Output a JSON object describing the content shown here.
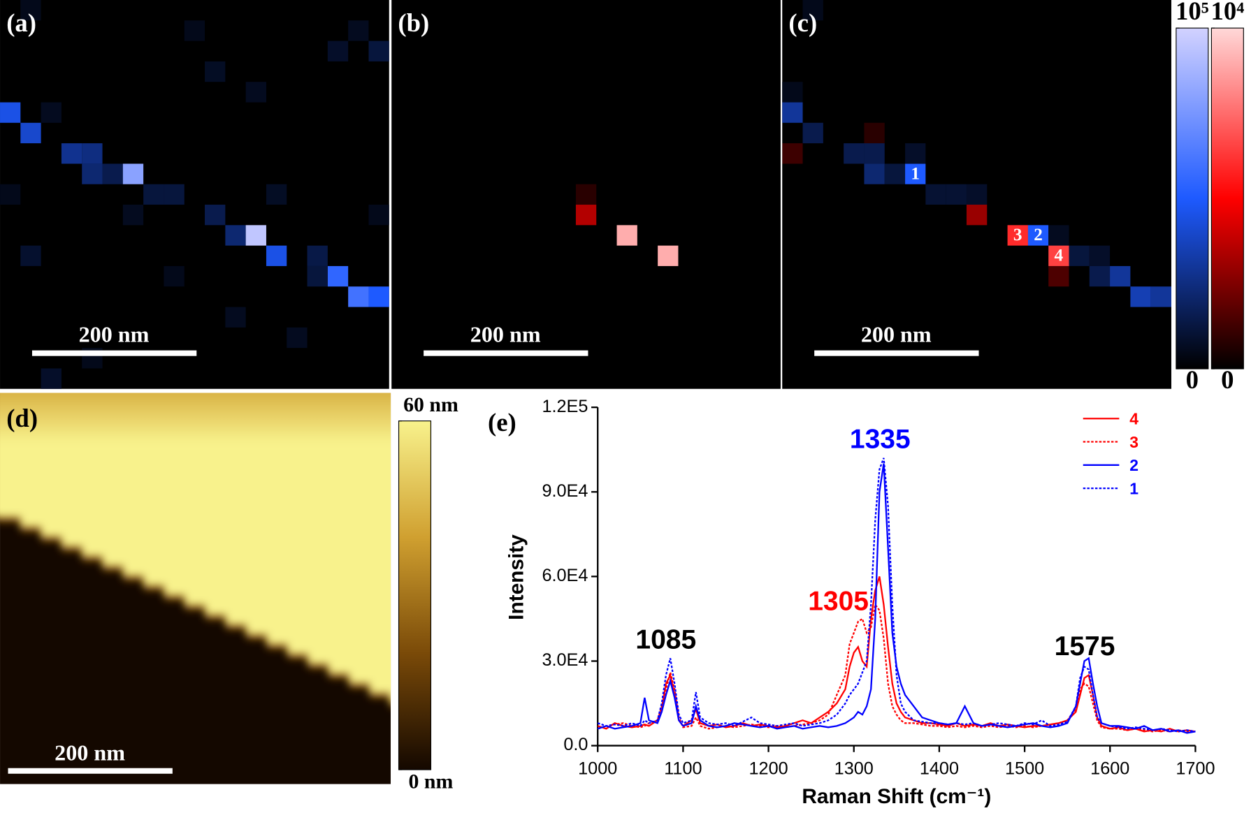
{
  "chart_data": [
    {
      "type": "heatmap",
      "panel_label": "(a)",
      "scale_bar": "200 nm",
      "layers": [
        {
          "clim": [
            0,
            100000
          ],
          "colors": [
            "#000000",
            "#1e5aff",
            "#d2d2ff"
          ],
          "x": [
            0,
            1,
            3,
            4,
            4,
            5,
            6,
            7,
            8,
            10,
            11,
            12,
            13,
            15,
            16,
            15,
            17,
            18,
            1,
            2,
            0,
            16,
            18,
            17,
            10,
            12,
            1,
            8,
            11,
            2,
            4,
            14,
            18,
            13,
            9,
            6
          ],
          "y": [
            5,
            6,
            7,
            7,
            8,
            8,
            8,
            9,
            9,
            10,
            11,
            11,
            12,
            12,
            13,
            13,
            14,
            14,
            0,
            5,
            9,
            2,
            2,
            1,
            3,
            4,
            12,
            13,
            15,
            18,
            17,
            16,
            10,
            9,
            1,
            10
          ],
          "values": [
            45000,
            40000,
            28000,
            25000,
            22000,
            15000,
            80000,
            12000,
            12000,
            15000,
            22000,
            95000,
            45000,
            14000,
            55000,
            12000,
            60000,
            50000,
            5000,
            6000,
            5000,
            8000,
            12000,
            6000,
            7000,
            6000,
            9000,
            5000,
            6000,
            8000,
            5000,
            6000,
            5000,
            7000,
            5000,
            6000
          ]
        }
      ]
    },
    {
      "type": "heatmap",
      "panel_label": "(b)",
      "scale_bar": "200 nm",
      "layers": [
        {
          "clim": [
            0,
            10000
          ],
          "colors": [
            "#000000",
            "#ff0000",
            "#ffd8d8"
          ],
          "x": [
            9,
            11,
            13,
            9
          ],
          "y": [
            10,
            11,
            12,
            9
          ],
          "values": [
            3500,
            9000,
            9000,
            800
          ]
        }
      ]
    },
    {
      "type": "heatmap",
      "panel_label": "(c)",
      "scale_bar": "200 nm",
      "layers": [
        {
          "clim": [
            0,
            100000
          ],
          "colors": [
            "#000000",
            "#1e5aff",
            "#d2d2ff"
          ],
          "x": [
            0,
            1,
            3,
            4,
            4,
            5,
            6,
            6,
            7,
            8,
            9,
            12,
            13,
            14,
            15,
            15,
            16,
            17,
            18,
            1,
            0
          ],
          "y": [
            5,
            6,
            7,
            7,
            8,
            8,
            8,
            7,
            9,
            9,
            9,
            11,
            11,
            12,
            12,
            13,
            13,
            14,
            14,
            0,
            4
          ],
          "values": [
            30000,
            15000,
            15000,
            15000,
            22000,
            12000,
            50000,
            8000,
            10000,
            10000,
            8000,
            50000,
            6000,
            12000,
            8000,
            15000,
            30000,
            35000,
            30000,
            5000,
            5000
          ]
        },
        {
          "clim": [
            0,
            10000
          ],
          "colors": [
            "#000000",
            "#ff0000",
            "#ffd8d8"
          ],
          "x": [
            9,
            11,
            13,
            13,
            0,
            4
          ],
          "y": [
            10,
            11,
            12,
            13,
            7,
            6
          ],
          "values": [
            3000,
            6000,
            6500,
            1500,
            1200,
            800
          ]
        }
      ],
      "annotations": [
        {
          "text": "1",
          "x": 6,
          "y": 8
        },
        {
          "text": "2",
          "x": 12,
          "y": 11
        },
        {
          "text": "3",
          "x": 11,
          "y": 11
        },
        {
          "text": "4",
          "x": 13,
          "y": 12
        }
      ],
      "colorbars": [
        {
          "clim": [
            0,
            100000
          ],
          "colors": [
            "#000000",
            "#1e5aff",
            "#d2d2ff"
          ],
          "ticks": [
            {
              "value": 100000,
              "label": "10⁵"
            },
            0
          ]
        },
        {
          "clim": [
            0,
            10000
          ],
          "colors": [
            "#000000",
            "#ff0000",
            "#ffd8d8"
          ],
          "ticks": [
            {
              "value": 10000,
              "label": "10⁴"
            },
            0
          ]
        }
      ]
    },
    {
      "type": "image",
      "panel_label": "(d)",
      "scale_bar": "200 nm",
      "colorbar": {
        "clim": [
          0,
          60
        ],
        "colors": [
          "#140800",
          "#7a4a08",
          "#d0a030",
          "#f8f28c"
        ],
        "ticks": [
          {
            "value": 60,
            "label": "60 nm"
          },
          {
            "value": 0,
            "label": "0 nm"
          }
        ]
      }
    },
    {
      "type": "line",
      "panel_label": "(e)",
      "x_label": "Raman Shift (cm⁻¹)",
      "y_label": "Intensity",
      "xlim": [
        1000,
        1700
      ],
      "xticks": [
        1000,
        1100,
        1200,
        1300,
        1400,
        1500,
        1600,
        1700
      ],
      "ylim": [
        0,
        120000
      ],
      "yticks": [
        {
          "value": 0,
          "label": "0.0"
        },
        {
          "value": 30000,
          "label": "3.0E4"
        },
        {
          "value": 60000,
          "label": "6.0E4"
        },
        {
          "value": 90000,
          "label": "9.0E4"
        },
        {
          "value": 120000,
          "label": "1.2E5"
        }
      ],
      "legend": "upper right",
      "x": [
        1000,
        1010,
        1020,
        1030,
        1040,
        1050,
        1055,
        1060,
        1070,
        1075,
        1080,
        1085,
        1090,
        1095,
        1100,
        1110,
        1115,
        1120,
        1130,
        1140,
        1150,
        1160,
        1170,
        1180,
        1190,
        1200,
        1210,
        1220,
        1230,
        1240,
        1250,
        1260,
        1270,
        1280,
        1290,
        1295,
        1300,
        1305,
        1310,
        1315,
        1320,
        1325,
        1330,
        1335,
        1340,
        1345,
        1350,
        1355,
        1360,
        1370,
        1380,
        1390,
        1400,
        1410,
        1420,
        1430,
        1440,
        1450,
        1460,
        1470,
        1480,
        1490,
        1500,
        1510,
        1520,
        1530,
        1540,
        1550,
        1560,
        1565,
        1570,
        1575,
        1580,
        1585,
        1590,
        1600,
        1610,
        1620,
        1630,
        1640,
        1650,
        1660,
        1670,
        1680,
        1690,
        1700
      ],
      "series": [
        {
          "name": "4",
          "color": "#ff0000",
          "style": "solid",
          "values": [
            7000,
            6000,
            8000,
            7000,
            6500,
            7000,
            7500,
            7000,
            9000,
            13000,
            22000,
            25000,
            18000,
            9000,
            7000,
            9000,
            13000,
            8000,
            7000,
            7500,
            6500,
            7000,
            8000,
            7000,
            7500,
            7000,
            6500,
            7000,
            8000,
            9000,
            8000,
            10000,
            12000,
            15000,
            20000,
            28000,
            33000,
            35000,
            30000,
            28000,
            45000,
            55000,
            60000,
            50000,
            35000,
            22000,
            15000,
            12000,
            10000,
            9000,
            8000,
            8000,
            7500,
            7000,
            8000,
            7000,
            7500,
            7000,
            8000,
            7000,
            7500,
            7000,
            6500,
            7000,
            7000,
            7500,
            8000,
            9000,
            12000,
            18000,
            24000,
            25000,
            18000,
            10000,
            7000,
            6000,
            6500,
            5500,
            6000,
            5000,
            5500,
            5000,
            6000,
            5000,
            5500,
            5000
          ]
        },
        {
          "name": "3",
          "color": "#ff0000",
          "style": "dotted",
          "values": [
            6000,
            7000,
            7500,
            8000,
            7000,
            6500,
            7000,
            8000,
            9000,
            14000,
            20000,
            26000,
            20000,
            10000,
            6500,
            7000,
            10000,
            7000,
            6000,
            6500,
            7000,
            6500,
            7000,
            7500,
            7000,
            6500,
            7000,
            6500,
            7000,
            7500,
            8000,
            9000,
            11000,
            18000,
            25000,
            36000,
            40000,
            44000,
            45000,
            40000,
            42000,
            50000,
            48000,
            38000,
            22000,
            14000,
            11000,
            9000,
            8000,
            8000,
            7500,
            7000,
            7000,
            6500,
            7000,
            6500,
            7000,
            6500,
            7000,
            6500,
            7000,
            6500,
            7000,
            6500,
            7000,
            7500,
            8000,
            9000,
            13000,
            20000,
            22000,
            21000,
            15000,
            9000,
            6500,
            6000,
            6000,
            5500,
            6000,
            5500,
            5000,
            5500,
            5000,
            5500,
            5000,
            5000
          ]
        },
        {
          "name": "2",
          "color": "#0000ff",
          "style": "solid",
          "values": [
            6000,
            7000,
            6000,
            6500,
            7000,
            8000,
            17000,
            9000,
            8000,
            12000,
            18000,
            23000,
            17000,
            9000,
            7000,
            8000,
            14000,
            9000,
            7000,
            6500,
            7000,
            8000,
            7500,
            7000,
            6500,
            7000,
            6000,
            6500,
            7000,
            6000,
            6500,
            7000,
            6500,
            7000,
            8000,
            9000,
            10000,
            12000,
            11000,
            14000,
            20000,
            45000,
            90000,
            100000,
            70000,
            40000,
            28000,
            22000,
            18000,
            14000,
            10000,
            9000,
            8000,
            7500,
            8000,
            14000,
            8000,
            7000,
            7500,
            7000,
            6500,
            7000,
            7500,
            8000,
            7000,
            6500,
            7000,
            8000,
            14000,
            22000,
            30000,
            31000,
            22000,
            14000,
            8000,
            7000,
            7000,
            6500,
            6000,
            7000,
            5500,
            6000,
            5000,
            5500,
            4500,
            5000
          ]
        },
        {
          "name": "1",
          "color": "#0000ff",
          "style": "dotted",
          "values": [
            8000,
            7000,
            7500,
            7000,
            8000,
            7000,
            9000,
            8000,
            9000,
            15000,
            25000,
            31000,
            22000,
            11000,
            8000,
            9000,
            19000,
            10000,
            8000,
            7500,
            8000,
            7000,
            8500,
            10000,
            8000,
            7500,
            7000,
            7500,
            8000,
            7000,
            7500,
            8000,
            9000,
            11000,
            15000,
            18000,
            20000,
            22000,
            26000,
            30000,
            50000,
            80000,
            98000,
            102000,
            85000,
            50000,
            25000,
            15000,
            12000,
            9000,
            8500,
            8000,
            8000,
            7500,
            8000,
            7500,
            8000,
            7000,
            7500,
            8000,
            7500,
            7000,
            8000,
            7500,
            9000,
            7000,
            7500,
            8500,
            14000,
            24000,
            28000,
            27000,
            18000,
            10000,
            8000,
            7000,
            6500,
            6000,
            6500,
            6000,
            5500,
            6000,
            5500,
            5000,
            5500,
            5000
          ]
        }
      ],
      "annotations": [
        {
          "text": "1085",
          "color": "#000000"
        },
        {
          "text": "1305",
          "color": "#ff0000"
        },
        {
          "text": "1335",
          "color": "#0000ff"
        },
        {
          "text": "1575",
          "color": "#000000"
        }
      ]
    }
  ]
}
